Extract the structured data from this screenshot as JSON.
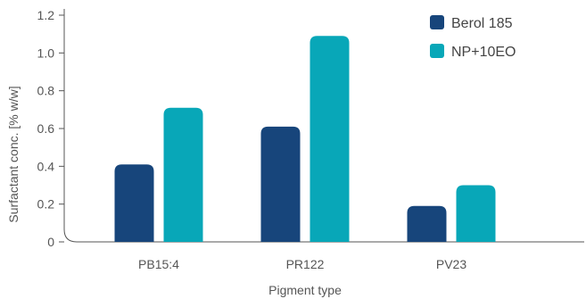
{
  "chart_data": {
    "type": "bar",
    "categories": [
      "PB15:4",
      "PR122",
      "PV23"
    ],
    "series": [
      {
        "name": "Berol 185",
        "color": "#17457b",
        "values": [
          0.41,
          0.61,
          0.19
        ]
      },
      {
        "name": "NP+10EO",
        "color": "#08a7b8",
        "values": [
          0.71,
          1.09,
          0.3
        ]
      }
    ],
    "xlabel": "Pigment type",
    "ylabel": "Surfactant conc. [% w/w]",
    "ylim": [
      0,
      1.2
    ],
    "yticks": [
      "0",
      "0.2",
      "0.4",
      "0.6",
      "0.8",
      "1.0",
      "1.2"
    ],
    "grid": false,
    "legend_position": "top-right",
    "axis_color": "#555555",
    "text_color": "#555555"
  }
}
